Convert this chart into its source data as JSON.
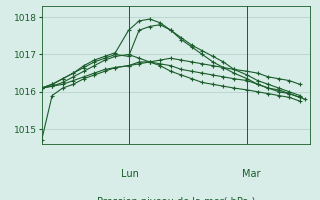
{
  "title": "",
  "xlabel": "Pression niveau de la mer( hPa )",
  "ylim": [
    1014.6,
    1018.3
  ],
  "yticks": [
    1015,
    1016,
    1017,
    1018
  ],
  "background_color": "#d8ece8",
  "grid_color": "#b0cfc8",
  "line_color": "#1a5c2a",
  "vline_positions": [
    0.33,
    0.78
  ],
  "vline_labels": [
    "Lun",
    "Mar"
  ],
  "series": [
    [
      0.0,
      0.04,
      0.08,
      0.12,
      0.16,
      0.2,
      0.24,
      0.28,
      0.33,
      0.37,
      0.41,
      0.45,
      0.49,
      0.53,
      0.57,
      0.61,
      0.65,
      0.69,
      0.73,
      0.78,
      0.82,
      0.86,
      0.9,
      0.94,
      0.98,
      1.0
    ],
    [
      1014.7,
      1015.9,
      1016.1,
      1016.2,
      1016.35,
      1016.45,
      1016.55,
      1016.65,
      1016.7,
      1016.8,
      1016.8,
      1016.75,
      1016.7,
      1016.6,
      1016.55,
      1016.5,
      1016.45,
      1016.4,
      1016.35,
      1016.3,
      1016.2,
      1016.1,
      1016.05,
      1015.95,
      1015.85,
      1015.8
    ],
    [
      0.0,
      0.04,
      0.08,
      0.12,
      0.16,
      0.2,
      0.24,
      0.28,
      0.33,
      0.37,
      0.41,
      0.45,
      0.49,
      0.53,
      0.57,
      0.61,
      0.65,
      0.69,
      0.73,
      0.78,
      0.82,
      0.86,
      0.9,
      0.94,
      0.98
    ],
    [
      1016.1,
      1016.15,
      1016.2,
      1016.3,
      1016.4,
      1016.5,
      1016.6,
      1016.65,
      1016.7,
      1016.75,
      1016.8,
      1016.85,
      1016.9,
      1016.85,
      1016.8,
      1016.75,
      1016.7,
      1016.65,
      1016.6,
      1016.55,
      1016.5,
      1016.4,
      1016.35,
      1016.3,
      1016.2
    ],
    [
      0.0,
      0.04,
      0.08,
      0.12,
      0.16,
      0.2,
      0.24,
      0.28,
      0.33,
      0.37,
      0.41,
      0.45,
      0.49,
      0.53,
      0.57,
      0.61,
      0.65,
      0.69,
      0.73,
      0.78,
      0.82,
      0.86,
      0.9,
      0.94,
      0.98
    ],
    [
      1016.1,
      1016.15,
      1016.25,
      1016.4,
      1016.55,
      1016.7,
      1016.85,
      1016.95,
      1017.0,
      1016.9,
      1016.8,
      1016.7,
      1016.55,
      1016.45,
      1016.35,
      1016.25,
      1016.2,
      1016.15,
      1016.1,
      1016.05,
      1016.0,
      1015.95,
      1015.9,
      1015.85,
      1015.75
    ],
    [
      0.0,
      0.04,
      0.08,
      0.12,
      0.16,
      0.2,
      0.24,
      0.28,
      0.33,
      0.37,
      0.41,
      0.45,
      0.49,
      0.53,
      0.57,
      0.61,
      0.65,
      0.69,
      0.73,
      0.78,
      0.82,
      0.86,
      0.9,
      0.94,
      0.98
    ],
    [
      1016.1,
      1016.2,
      1016.35,
      1016.5,
      1016.65,
      1016.8,
      1016.9,
      1017.0,
      1016.95,
      1017.65,
      1017.75,
      1017.8,
      1017.65,
      1017.4,
      1017.2,
      1017.0,
      1016.8,
      1016.65,
      1016.5,
      1016.35,
      1016.2,
      1016.1,
      1016.0,
      1015.95,
      1015.85
    ],
    [
      0.0,
      0.04,
      0.08,
      0.12,
      0.16,
      0.2,
      0.24,
      0.28,
      0.33,
      0.37,
      0.41,
      0.45,
      0.49,
      0.53,
      0.57,
      0.61,
      0.65,
      0.69,
      0.73,
      0.78,
      0.82,
      0.86,
      0.9,
      0.94,
      0.98
    ],
    [
      1016.1,
      1016.2,
      1016.35,
      1016.5,
      1016.7,
      1016.85,
      1016.95,
      1017.05,
      1017.65,
      1017.9,
      1017.95,
      1017.85,
      1017.65,
      1017.45,
      1017.25,
      1017.1,
      1016.95,
      1016.8,
      1016.6,
      1016.45,
      1016.3,
      1016.2,
      1016.1,
      1016.0,
      1015.9
    ]
  ]
}
